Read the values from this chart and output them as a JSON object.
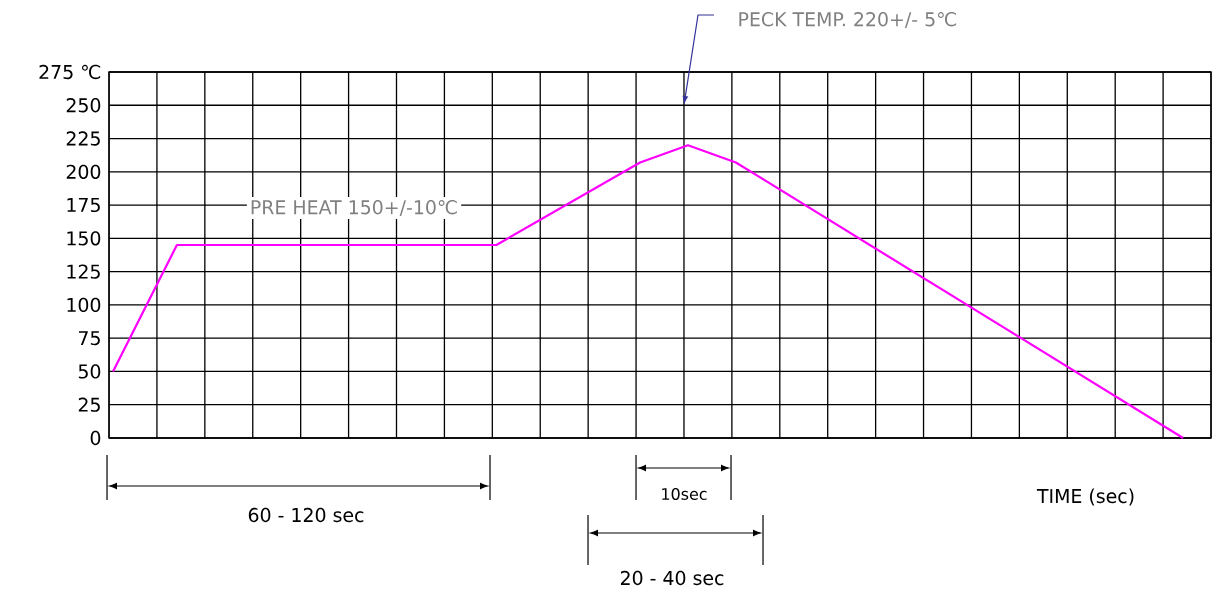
{
  "chart_data": {
    "type": "line",
    "xlabel": "TIME (sec)",
    "categories": [
      null,
      null,
      null,
      null,
      null,
      null,
      null,
      null,
      null,
      null,
      null,
      null,
      null,
      null,
      null,
      null,
      null,
      null,
      null,
      null,
      null,
      null,
      null,
      null,
      null,
      null,
      null,
      null,
      null,
      null,
      null,
      null,
      null,
      null,
      null,
      null,
      null,
      null,
      null,
      null,
      null,
      null,
      null,
      null,
      null,
      null,
      null,
      null,
      null,
      null,
      null,
      null,
      null,
      null,
      null,
      null,
      null,
      null,
      null,
      null,
      null,
      null,
      null,
      null,
      null,
      null,
      null,
      null,
      null,
      null,
      null,
      null,
      null,
      null,
      null,
      null,
      null,
      null,
      null,
      null,
      null,
      null,
      null,
      null,
      null,
      null,
      null,
      null,
      null,
      null,
      null,
      null,
      null,
      null,
      null,
      null,
      null,
      null,
      null,
      null,
      null,
      null,
      null,
      null,
      null,
      null,
      null,
      null,
      null,
      null,
      null,
      null,
      null,
      null,
      null,
      null,
      null,
      null,
      null,
      null,
      null,
      null,
      null,
      null,
      null,
      null,
      null,
      null,
      null,
      null,
      null,
      null,
      null,
      null,
      null,
      null,
      null,
      null
    ],
    "values": [
      50,
      null,
      null,
      null,
      null,
      null,
      null,
      null,
      145,
      null,
      null,
      null,
      null,
      null,
      null,
      null,
      null,
      null,
      null,
      null,
      null,
      null,
      null,
      null,
      null,
      null,
      null,
      null,
      null,
      null,
      null,
      null,
      null,
      null,
      null,
      null,
      null,
      null,
      null,
      null,
      null,
      null,
      null,
      null,
      null,
      null,
      null,
      null,
      145,
      null,
      null,
      null,
      null,
      null,
      null,
      null,
      null,
      null,
      null,
      null,
      null,
      null,
      null,
      null,
      null,
      null,
      207,
      null,
      null,
      null,
      null,
      null,
      220,
      null,
      null,
      null,
      null,
      null,
      207,
      null,
      null,
      null,
      null,
      null,
      null,
      null,
      null,
      null,
      null,
      null,
      null,
      null,
      null,
      null,
      null,
      null,
      null,
      null,
      null,
      null,
      null,
      null,
      null,
      null,
      null,
      null,
      null,
      null,
      null,
      null,
      null,
      null,
      null,
      null,
      null,
      null,
      null,
      null,
      null,
      null,
      null,
      null,
      null,
      null,
      null,
      null,
      null,
      null,
      null,
      null,
      null,
      null,
      null,
      null,
      0,
      null,
      null,
      null
    ],
    "color": "#ff00ff",
    "ylim": [
      0,
      275
    ],
    "yticks": [
      0,
      25,
      50,
      75,
      100,
      125,
      150,
      175,
      200,
      225,
      250,
      {
        "value": 275,
        "label": "275  ℃"
      }
    ],
    "grid": true,
    "marker": "none",
    "line_style": "solid",
    "annotations": [
      "PECK TEMP. 220+/- 5℃",
      "PRE HEAT 150+/-10℃",
      "60 - 120 sec",
      "10sec",
      "20 - 40 sec"
    ]
  }
}
